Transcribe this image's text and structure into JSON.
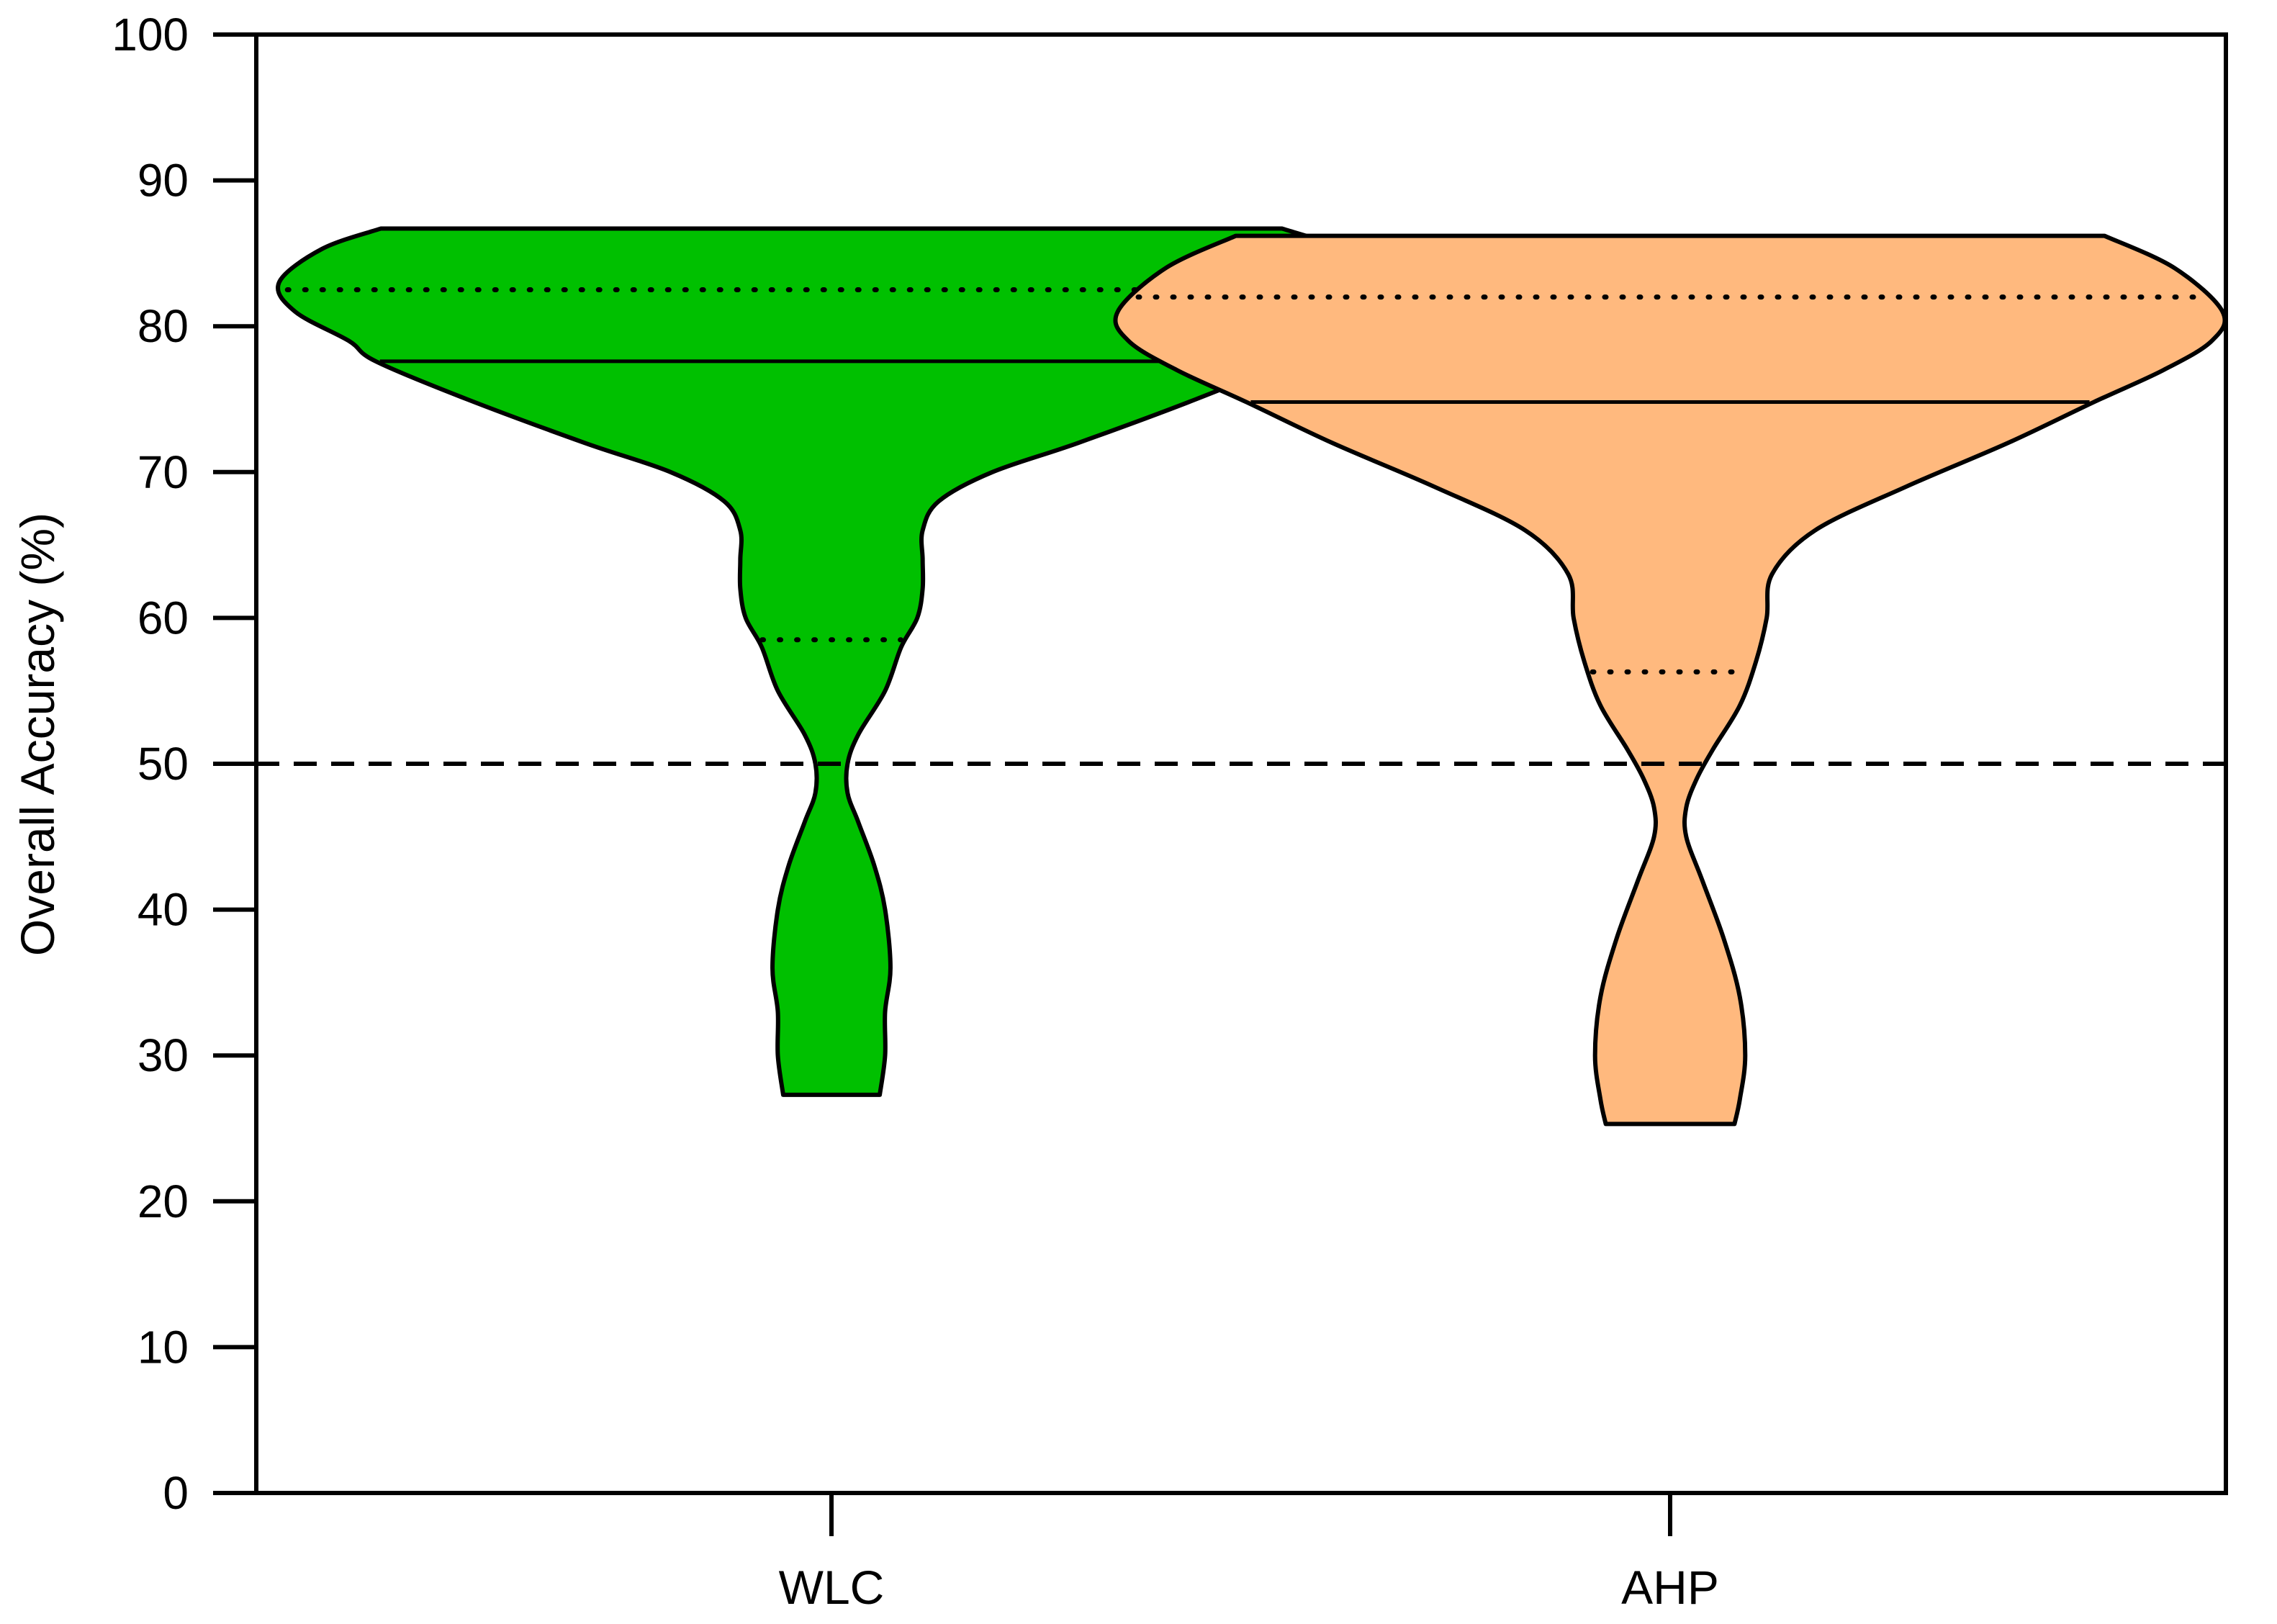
{
  "chart_data": {
    "type": "violin",
    "ylabel": "Overall Accuracy (%)",
    "xlabel": "",
    "ylim": [
      0,
      100
    ],
    "yticks": [
      0,
      10,
      20,
      30,
      40,
      50,
      60,
      70,
      80,
      90,
      100
    ],
    "ytick_labels": [
      "0",
      "10",
      "20",
      "30",
      "40",
      "50",
      "60",
      "70",
      "80",
      "90",
      "100"
    ],
    "categories": [
      "WLC",
      "AHP"
    ],
    "reference_line": {
      "y": 50,
      "style": "dashed"
    },
    "series": [
      {
        "category": "WLC",
        "color": "#00c000",
        "min": 27.3,
        "max": 86.7,
        "median": 77.6,
        "quartile_upper": 82.5,
        "quartile_lower": 58.5,
        "width_profile": [
          [
            86.7,
            0.84
          ],
          [
            85.3,
            0.95
          ],
          [
            83.0,
            1.03
          ],
          [
            81.0,
            1.0
          ],
          [
            79.0,
            0.9
          ],
          [
            77.6,
            0.85
          ],
          [
            75.0,
            0.68
          ],
          [
            72.0,
            0.46
          ],
          [
            70.0,
            0.3
          ],
          [
            68.0,
            0.2
          ],
          [
            66.0,
            0.17
          ],
          [
            64.0,
            0.17
          ],
          [
            62.0,
            0.17
          ],
          [
            60.0,
            0.16
          ],
          [
            58.0,
            0.13
          ],
          [
            55.0,
            0.1
          ],
          [
            52.0,
            0.05
          ],
          [
            50.0,
            0.03
          ],
          [
            48.0,
            0.03
          ],
          [
            46.0,
            0.05
          ],
          [
            43.0,
            0.08
          ],
          [
            40.0,
            0.1
          ],
          [
            36.0,
            0.11
          ],
          [
            33.0,
            0.1
          ],
          [
            30.0,
            0.1
          ],
          [
            27.3,
            0.09
          ]
        ]
      },
      {
        "category": "AHP",
        "color": "#ffb97e",
        "min": 25.3,
        "max": 86.2,
        "median": 74.8,
        "quartile_upper": 82.0,
        "quartile_lower": 56.3,
        "width_profile": [
          [
            86.2,
            0.81
          ],
          [
            84.0,
            0.94
          ],
          [
            81.0,
            1.03
          ],
          [
            79.0,
            1.01
          ],
          [
            77.0,
            0.92
          ],
          [
            74.8,
            0.79
          ],
          [
            72.0,
            0.63
          ],
          [
            69.0,
            0.44
          ],
          [
            66.0,
            0.27
          ],
          [
            63.0,
            0.19
          ],
          [
            60.0,
            0.18
          ],
          [
            57.0,
            0.16
          ],
          [
            54.0,
            0.13
          ],
          [
            51.0,
            0.08
          ],
          [
            49.0,
            0.05
          ],
          [
            47.0,
            0.03
          ],
          [
            45.0,
            0.03
          ],
          [
            42.0,
            0.06
          ],
          [
            38.0,
            0.1
          ],
          [
            34.0,
            0.13
          ],
          [
            30.0,
            0.14
          ],
          [
            27.0,
            0.13
          ],
          [
            25.3,
            0.12
          ]
        ]
      }
    ]
  }
}
